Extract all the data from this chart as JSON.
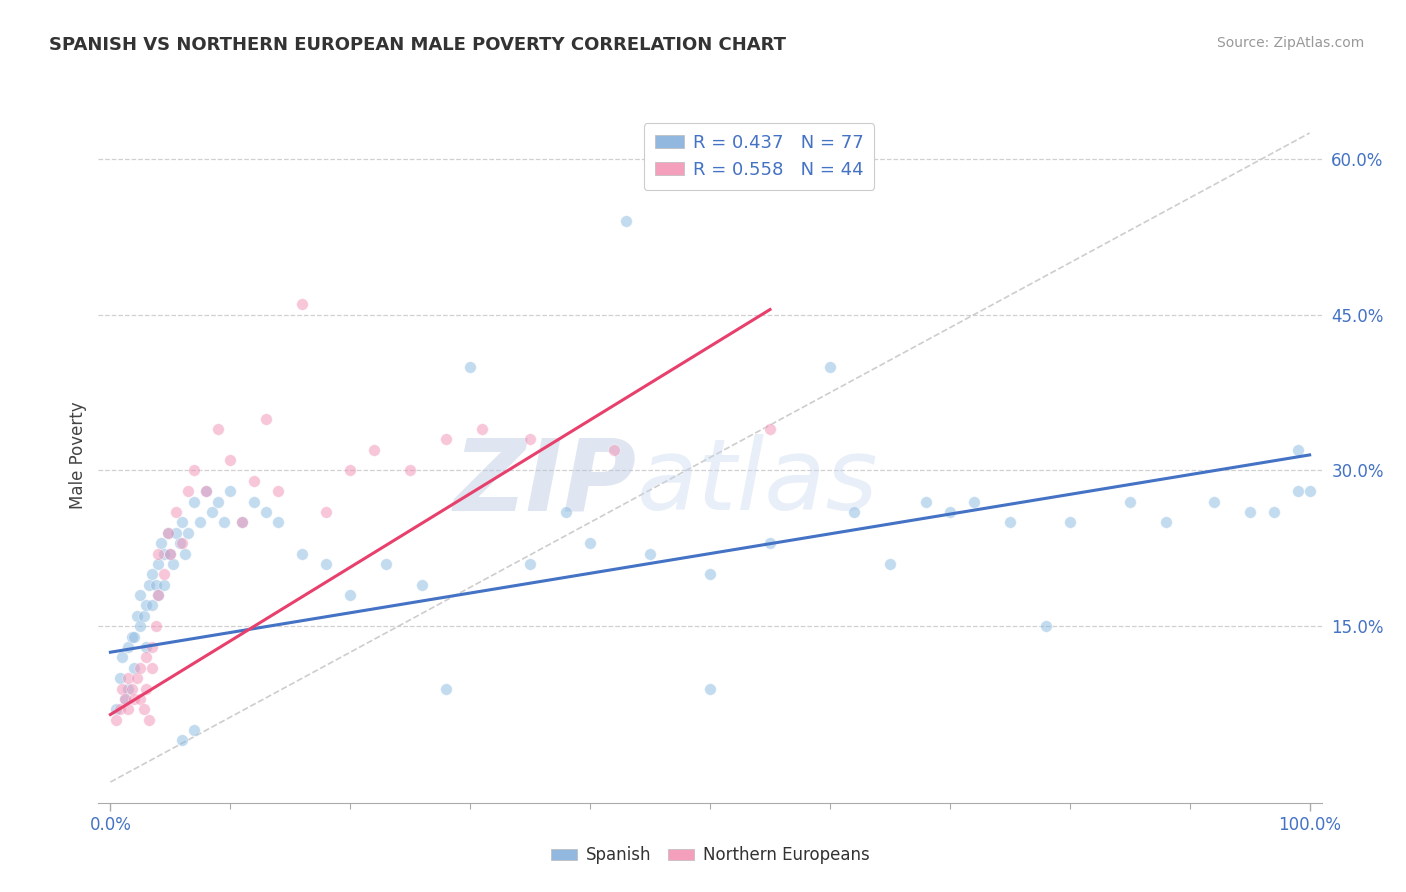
{
  "title": "SPANISH VS NORTHERN EUROPEAN MALE POVERTY CORRELATION CHART",
  "source": "Source: ZipAtlas.com",
  "ylabel": "Male Poverty",
  "legend_top": [
    {
      "label": "R = 0.437   N = 77",
      "color": "#92b8e0"
    },
    {
      "label": "R = 0.558   N = 44",
      "color": "#f4a0bc"
    }
  ],
  "legend_bottom": [
    {
      "label": "Spanish",
      "color": "#92b8e0"
    },
    {
      "label": "Northern Europeans",
      "color": "#f4a0bc"
    }
  ],
  "ylim": [
    -0.02,
    0.65
  ],
  "xlim": [
    -0.01,
    1.01
  ],
  "yticks": [
    0.15,
    0.3,
    0.45,
    0.6
  ],
  "ytick_labels": [
    "15.0%",
    "30.0%",
    "45.0%",
    "60.0%"
  ],
  "xtick_left_label": "0.0%",
  "xtick_right_label": "100.0%",
  "background_color": "#ffffff",
  "grid_color": "#d0d0d0",
  "watermark": "ZIPatlas",
  "watermark_color": "#c8d8ee",
  "blue_dot_color": "#88b8e0",
  "pink_dot_color": "#f090b4",
  "blue_line_color": "#4472c4",
  "pink_line_color": "#e8406c",
  "ref_line_color": "#c8c8c8",
  "blue_scatter_x": [
    0.005,
    0.008,
    0.01,
    0.012,
    0.015,
    0.015,
    0.018,
    0.02,
    0.02,
    0.022,
    0.025,
    0.025,
    0.028,
    0.03,
    0.03,
    0.032,
    0.035,
    0.035,
    0.038,
    0.04,
    0.04,
    0.042,
    0.045,
    0.045,
    0.048,
    0.05,
    0.052,
    0.055,
    0.058,
    0.06,
    0.062,
    0.065,
    0.07,
    0.075,
    0.08,
    0.085,
    0.09,
    0.095,
    0.1,
    0.11,
    0.12,
    0.13,
    0.14,
    0.16,
    0.18,
    0.2,
    0.23,
    0.26,
    0.3,
    0.35,
    0.4,
    0.45,
    0.5,
    0.55,
    0.6,
    0.65,
    0.7,
    0.75,
    0.8,
    0.85,
    0.88,
    0.92,
    0.95,
    0.97,
    0.99,
    0.99,
    1.0,
    0.28,
    0.5,
    0.62,
    0.68,
    0.72,
    0.78,
    0.38,
    0.43,
    0.06,
    0.07
  ],
  "blue_scatter_y": [
    0.07,
    0.1,
    0.12,
    0.08,
    0.13,
    0.09,
    0.14,
    0.14,
    0.11,
    0.16,
    0.15,
    0.18,
    0.16,
    0.13,
    0.17,
    0.19,
    0.17,
    0.2,
    0.19,
    0.21,
    0.18,
    0.23,
    0.22,
    0.19,
    0.24,
    0.22,
    0.21,
    0.24,
    0.23,
    0.25,
    0.22,
    0.24,
    0.27,
    0.25,
    0.28,
    0.26,
    0.27,
    0.25,
    0.28,
    0.25,
    0.27,
    0.26,
    0.25,
    0.22,
    0.21,
    0.18,
    0.21,
    0.19,
    0.4,
    0.21,
    0.23,
    0.22,
    0.2,
    0.23,
    0.4,
    0.21,
    0.26,
    0.25,
    0.25,
    0.27,
    0.25,
    0.27,
    0.26,
    0.26,
    0.32,
    0.28,
    0.28,
    0.09,
    0.09,
    0.26,
    0.27,
    0.27,
    0.15,
    0.26,
    0.54,
    0.04,
    0.05
  ],
  "pink_scatter_x": [
    0.005,
    0.008,
    0.01,
    0.012,
    0.015,
    0.015,
    0.018,
    0.02,
    0.022,
    0.025,
    0.025,
    0.028,
    0.03,
    0.03,
    0.032,
    0.035,
    0.035,
    0.038,
    0.04,
    0.04,
    0.045,
    0.048,
    0.05,
    0.055,
    0.06,
    0.065,
    0.07,
    0.08,
    0.09,
    0.1,
    0.11,
    0.12,
    0.13,
    0.14,
    0.16,
    0.18,
    0.2,
    0.22,
    0.25,
    0.28,
    0.31,
    0.35,
    0.42,
    0.55
  ],
  "pink_scatter_y": [
    0.06,
    0.07,
    0.09,
    0.08,
    0.1,
    0.07,
    0.09,
    0.08,
    0.1,
    0.11,
    0.08,
    0.07,
    0.12,
    0.09,
    0.06,
    0.13,
    0.11,
    0.15,
    0.18,
    0.22,
    0.2,
    0.24,
    0.22,
    0.26,
    0.23,
    0.28,
    0.3,
    0.28,
    0.34,
    0.31,
    0.25,
    0.29,
    0.35,
    0.28,
    0.46,
    0.26,
    0.3,
    0.32,
    0.3,
    0.33,
    0.34,
    0.33,
    0.32,
    0.34
  ],
  "blue_line_x": [
    0.0,
    1.0
  ],
  "blue_line_y": [
    0.125,
    0.315
  ],
  "pink_line_x": [
    0.0,
    0.55
  ],
  "pink_line_y": [
    0.065,
    0.455
  ],
  "ref_line_x": [
    0.0,
    1.0
  ],
  "ref_line_y": [
    0.0,
    0.625
  ]
}
